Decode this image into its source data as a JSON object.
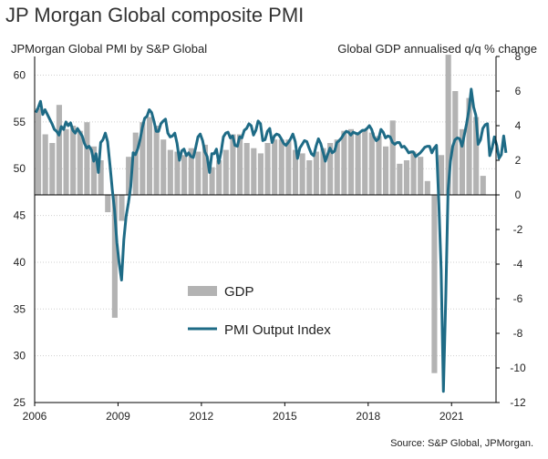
{
  "chart_data": {
    "type": "bar+line",
    "title": "JP Morgan Global composite PMI",
    "left_axis_label": "JPMorgan Global PMI by S&P Global",
    "right_axis_label": "Global GDP annualised q/q % change",
    "source": "Source: S&P Global, JPMorgan.",
    "x_ticks": [
      "2006",
      "2009",
      "2012",
      "2015",
      "2018",
      "2021"
    ],
    "x_range": [
      2006,
      2022.6
    ],
    "left_ylim": [
      25,
      62
    ],
    "left_ticks": [
      "25",
      "30",
      "35",
      "40",
      "45",
      "50",
      "55",
      "60"
    ],
    "right_ylim": [
      -12,
      8
    ],
    "right_ticks": [
      "-12",
      "-10",
      "-8",
      "-6",
      "-4",
      "-2",
      "0",
      "2",
      "4",
      "6",
      "8"
    ],
    "grid": true,
    "series": [
      {
        "name": "GDP",
        "type": "bar",
        "color": "#b3b3b3",
        "axis": "right",
        "quarters": [
          "2006Q1",
          "2006Q2",
          "2006Q3",
          "2006Q4",
          "2007Q1",
          "2007Q2",
          "2007Q3",
          "2007Q4",
          "2008Q1",
          "2008Q2",
          "2008Q3",
          "2008Q4",
          "2009Q1",
          "2009Q2",
          "2009Q3",
          "2009Q4",
          "2010Q1",
          "2010Q2",
          "2010Q3",
          "2010Q4",
          "2011Q1",
          "2011Q2",
          "2011Q3",
          "2011Q4",
          "2012Q1",
          "2012Q2",
          "2012Q3",
          "2012Q4",
          "2013Q1",
          "2013Q2",
          "2013Q3",
          "2013Q4",
          "2014Q1",
          "2014Q2",
          "2014Q3",
          "2014Q4",
          "2015Q1",
          "2015Q2",
          "2015Q3",
          "2015Q4",
          "2016Q1",
          "2016Q2",
          "2016Q3",
          "2016Q4",
          "2017Q1",
          "2017Q2",
          "2017Q3",
          "2017Q4",
          "2018Q1",
          "2018Q2",
          "2018Q3",
          "2018Q4",
          "2019Q1",
          "2019Q2",
          "2019Q3",
          "2019Q4",
          "2020Q1",
          "2020Q2",
          "2020Q3",
          "2020Q4",
          "2021Q1",
          "2021Q2",
          "2021Q3",
          "2021Q4",
          "2022Q1"
        ],
        "values": [
          5.0,
          3.5,
          3.0,
          5.2,
          3.8,
          4.0,
          3.7,
          4.2,
          2.8,
          2.0,
          -1.0,
          -7.1,
          -1.5,
          2.2,
          3.6,
          4.2,
          4.5,
          4.0,
          3.2,
          2.6,
          2.5,
          2.3,
          2.7,
          2.5,
          2.9,
          1.6,
          2.0,
          2.6,
          3.5,
          3.5,
          3.0,
          2.7,
          2.4,
          3.0,
          3.2,
          3.2,
          3.2,
          2.6,
          2.4,
          2.0,
          2.5,
          2.7,
          3.0,
          3.2,
          3.7,
          3.8,
          3.6,
          3.8,
          3.6,
          3.4,
          2.8,
          4.3,
          1.8,
          2.0,
          2.5,
          2.2,
          0.8,
          -10.3,
          2.3,
          8.1,
          6.0,
          3.8,
          5.6,
          4.5,
          1.1
        ]
      },
      {
        "name": "PMI Output Index",
        "type": "line",
        "color": "#1e6b86",
        "axis": "left",
        "start": "2006-01",
        "values": [
          56.0,
          56.5,
          57.2,
          55.8,
          56.3,
          55.8,
          55.3,
          54.8,
          54.2,
          54.0,
          53.6,
          54.5,
          54.2,
          55.0,
          54.6,
          54.9,
          54.1,
          53.8,
          54.3,
          53.9,
          53.5,
          52.7,
          52.2,
          52.4,
          52.0,
          50.8,
          51.6,
          49.6,
          52.8,
          53.1,
          53.8,
          52.9,
          50.4,
          47.8,
          45.6,
          42.1,
          39.9,
          38.1,
          42.4,
          44.9,
          46.4,
          48.1,
          51.7,
          51.5,
          52.1,
          53.1,
          54.4,
          55.4,
          55.6,
          56.3,
          56.0,
          55.1,
          54.0,
          54.0,
          54.8,
          55.1,
          55.3,
          53.8,
          53.4,
          53.5,
          53.8,
          52.7,
          50.9,
          51.9,
          52.1,
          51.4,
          51.7,
          51.3,
          51.2,
          52.2,
          53.4,
          53.7,
          53.0,
          51.8,
          51.3,
          49.6,
          51.6,
          51.6,
          52.1,
          50.6,
          51.8,
          53.4,
          53.8,
          53.9,
          53.3,
          53.5,
          52.5,
          52.4,
          53.4,
          53.3,
          54.1,
          54.3,
          54.8,
          54.6,
          53.6,
          54.1,
          55.1,
          54.8,
          53.0,
          53.1,
          54.0,
          54.3,
          52.8,
          53.5,
          53.7,
          53.6,
          53.2,
          52.7,
          52.5,
          52.8,
          53.2,
          53.7,
          52.9,
          51.1,
          52.2,
          52.6,
          53.0,
          52.9,
          52.2,
          51.6,
          51.4,
          52.4,
          53.2,
          52.7,
          51.8,
          50.8,
          51.5,
          52.2,
          51.7,
          51.9,
          52.8,
          53.0,
          53.3,
          53.7,
          54.0,
          53.9,
          53.6,
          53.9,
          53.8,
          53.7,
          53.9,
          54.1,
          54.1,
          54.3,
          54.6,
          54.2,
          53.4,
          53.0,
          53.2,
          54.2,
          53.9,
          53.3,
          53.5,
          53.4,
          52.8,
          52.6,
          52.8,
          52.8,
          52.3,
          52.4,
          52.1,
          51.7,
          51.8,
          51.8,
          51.3,
          51.5,
          51.7,
          52.0,
          52.3,
          52.4,
          52.4,
          51.7,
          52.2,
          52.5,
          46.3,
          39.2,
          26.2,
          36.3,
          47.7,
          50.8,
          52.4,
          53.1,
          53.3,
          53.2,
          52.4,
          53.6,
          54.8,
          56.3,
          58.5,
          56.6,
          55.7,
          52.6,
          53.1,
          54.3,
          54.7,
          54.8,
          51.4,
          52.2,
          53.4,
          52.5,
          51.1,
          51.5,
          53.5,
          51.7
        ]
      }
    ]
  },
  "legend": {
    "gdp_label": "GDP",
    "pmi_label": "PMI Output Index"
  }
}
